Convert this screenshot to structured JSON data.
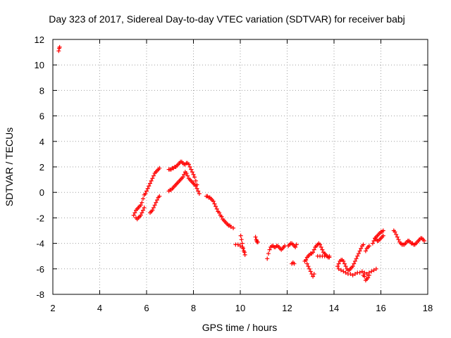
{
  "chart_data": {
    "type": "scatter",
    "title": "Day 323 of 2017, Sidereal Day-to-day VTEC variation (SDTVAR) for receiver babj",
    "xlabel": "GPS time / hours",
    "ylabel": "SDTVAR / TECUs",
    "xlim": [
      2,
      18
    ],
    "ylim": [
      -8,
      12
    ],
    "grid": true,
    "marker": "+",
    "color": "#ff0000",
    "xticks": [
      2,
      4,
      6,
      8,
      10,
      12,
      14,
      16,
      18
    ],
    "yticks": [
      -8,
      -6,
      -4,
      -2,
      0,
      2,
      4,
      6,
      8,
      10,
      12
    ],
    "xtick_labels": [
      "2",
      "4",
      "6",
      "8",
      "10",
      "12",
      "14",
      "16",
      "18"
    ],
    "ytick_labels": [
      "-8",
      "-6",
      "-4",
      "-2",
      "0",
      "2",
      "4",
      "6",
      "8",
      "10",
      "12"
    ],
    "series": [
      {
        "name": "SDTVAR",
        "x": [
          2.25,
          2.27,
          2.29,
          5.45,
          5.5,
          5.55,
          5.6,
          5.65,
          5.7,
          5.75,
          5.8,
          5.85,
          5.9,
          5.95,
          6.0,
          6.05,
          6.1,
          6.15,
          6.2,
          6.25,
          6.3,
          6.35,
          6.4,
          6.45,
          6.5,
          6.55,
          5.55,
          5.6,
          5.65,
          5.7,
          5.75,
          5.8,
          5.85,
          5.9,
          6.15,
          6.2,
          6.25,
          6.3,
          6.35,
          6.4,
          6.45,
          6.5,
          6.55,
          6.95,
          7.0,
          7.05,
          7.1,
          7.15,
          7.2,
          7.25,
          7.3,
          7.35,
          7.4,
          7.45,
          7.5,
          7.55,
          7.6,
          7.65,
          7.7,
          7.75,
          7.8,
          7.85,
          7.9,
          7.95,
          8.0,
          8.05,
          8.1,
          8.15,
          6.95,
          7.0,
          7.05,
          7.1,
          7.15,
          7.2,
          7.25,
          7.3,
          7.35,
          7.4,
          7.45,
          7.5,
          7.55,
          7.6,
          7.65,
          7.7,
          7.75,
          7.8,
          7.85,
          7.9,
          7.95,
          8.0,
          8.05,
          8.1,
          8.15,
          8.2,
          8.25,
          8.55,
          8.6,
          8.65,
          8.7,
          8.75,
          8.8,
          8.85,
          8.9,
          8.95,
          9.0,
          9.05,
          9.1,
          9.15,
          9.2,
          9.25,
          9.3,
          9.35,
          9.4,
          9.45,
          9.5,
          9.55,
          9.6,
          9.7,
          9.8,
          9.9,
          10.0,
          10.02,
          10.05,
          10.08,
          10.1,
          10.12,
          10.15,
          10.18,
          10.2,
          10.65,
          10.68,
          10.7,
          10.72,
          10.75,
          11.15,
          11.2,
          11.25,
          11.3,
          11.35,
          11.4,
          11.45,
          11.5,
          11.55,
          11.6,
          11.65,
          11.7,
          11.75,
          11.8,
          11.85,
          11.9,
          12.05,
          12.1,
          12.15,
          12.2,
          12.25,
          12.3,
          12.35,
          12.4,
          12.2,
          12.25,
          12.3,
          12.75,
          12.8,
          12.85,
          12.9,
          12.95,
          13.0,
          13.05,
          13.1,
          13.15,
          13.2,
          13.25,
          13.3,
          13.35,
          13.4,
          13.45,
          13.5,
          13.55,
          13.6,
          13.65,
          13.7,
          13.75,
          13.8,
          12.8,
          12.85,
          12.9,
          12.95,
          13.0,
          13.05,
          13.1,
          13.15,
          13.3,
          13.4,
          13.5,
          13.6,
          13.7,
          13.8,
          14.15,
          14.2,
          14.25,
          14.3,
          14.35,
          14.4,
          14.45,
          14.5,
          14.55,
          14.6,
          14.65,
          14.7,
          14.75,
          14.8,
          14.85,
          14.9,
          14.95,
          15.0,
          15.05,
          15.1,
          15.15,
          15.2,
          15.25,
          14.2,
          14.3,
          14.4,
          14.5,
          14.6,
          14.7,
          14.8,
          14.9,
          15.0,
          15.1,
          15.2,
          15.3,
          15.4,
          15.5,
          15.6,
          15.7,
          15.8,
          15.25,
          15.3,
          15.35,
          15.4,
          15.45,
          15.5,
          15.35,
          15.4,
          15.45,
          15.5,
          15.65,
          15.7,
          15.75,
          15.8,
          15.85,
          15.9,
          15.95,
          16.0,
          16.05,
          16.1,
          15.75,
          15.8,
          15.85,
          15.9,
          15.95,
          16.0,
          16.05,
          16.1,
          16.55,
          16.6,
          16.65,
          16.7,
          16.75,
          16.8,
          16.85,
          16.9,
          16.95,
          17.0,
          17.05,
          17.1,
          17.15,
          17.2,
          17.25,
          17.3,
          17.35,
          17.4,
          17.45,
          17.5,
          17.55,
          17.6,
          17.65,
          17.7,
          17.75,
          17.8,
          17.85
        ],
        "y": [
          11.1,
          11.3,
          11.4,
          -1.8,
          -1.6,
          -1.4,
          -1.3,
          -1.2,
          -1.1,
          -1.0,
          -0.8,
          -0.5,
          -0.2,
          -0.1,
          0.1,
          0.3,
          0.5,
          0.7,
          0.9,
          1.1,
          1.3,
          1.5,
          1.6,
          1.7,
          1.8,
          1.9,
          -2.0,
          -2.1,
          -2.0,
          -1.9,
          -1.8,
          -1.6,
          -1.4,
          -1.2,
          -1.6,
          -1.5,
          -1.4,
          -1.2,
          -1.0,
          -0.8,
          -0.6,
          -0.4,
          -0.3,
          1.8,
          1.8,
          1.8,
          1.9,
          1.9,
          2.0,
          2.0,
          2.1,
          2.2,
          2.3,
          2.4,
          2.4,
          2.3,
          2.2,
          2.2,
          2.3,
          2.3,
          2.2,
          2.0,
          1.8,
          1.6,
          1.4,
          1.2,
          0.9,
          0.6,
          0.1,
          0.2,
          0.2,
          0.3,
          0.4,
          0.5,
          0.6,
          0.7,
          0.8,
          0.9,
          1.0,
          1.1,
          1.2,
          1.4,
          1.6,
          1.5,
          1.3,
          1.1,
          1.0,
          0.9,
          0.8,
          0.7,
          0.6,
          0.5,
          0.3,
          0.1,
          -0.1,
          -0.3,
          -0.3,
          -0.4,
          -0.4,
          -0.5,
          -0.6,
          -0.7,
          -0.9,
          -1.1,
          -1.3,
          -1.5,
          -1.6,
          -1.8,
          -1.9,
          -2.1,
          -2.2,
          -2.3,
          -2.4,
          -2.5,
          -2.6,
          -2.6,
          -2.7,
          -2.8,
          -4.1,
          -4.1,
          -4.2,
          -3.4,
          -3.7,
          -4.0,
          -4.3,
          -4.4,
          -4.6,
          -4.7,
          -4.9,
          -3.5,
          -3.7,
          -3.8,
          -3.9,
          -3.9,
          -5.2,
          -4.8,
          -4.5,
          -4.3,
          -4.2,
          -4.2,
          -4.3,
          -4.3,
          -4.2,
          -4.2,
          -4.3,
          -4.4,
          -4.5,
          -4.4,
          -4.3,
          -4.2,
          -4.2,
          -4.1,
          -4.0,
          -4.0,
          -4.1,
          -4.2,
          -4.3,
          -4.1,
          -5.6,
          -5.5,
          -5.6,
          -5.4,
          -5.3,
          -5.1,
          -5.0,
          -4.9,
          -4.8,
          -4.8,
          -4.7,
          -4.5,
          -4.3,
          -4.2,
          -4.1,
          -4.0,
          -4.1,
          -4.3,
          -4.5,
          -4.7,
          -4.8,
          -4.9,
          -5.0,
          -5.1,
          -5.1,
          -5.3,
          -5.6,
          -5.8,
          -6.0,
          -6.2,
          -6.4,
          -6.6,
          -6.4,
          -5.0,
          -5.0,
          -5.0,
          -5.0,
          -5.0,
          -5.0,
          -5.8,
          -5.6,
          -5.4,
          -5.3,
          -5.3,
          -5.4,
          -5.6,
          -5.8,
          -6.0,
          -6.1,
          -6.1,
          -6.0,
          -5.9,
          -5.8,
          -5.6,
          -5.4,
          -5.2,
          -5.0,
          -4.8,
          -4.6,
          -4.4,
          -4.2,
          -4.1,
          -6.0,
          -6.1,
          -6.2,
          -6.3,
          -6.4,
          -6.4,
          -6.5,
          -6.4,
          -6.3,
          -6.3,
          -6.2,
          -6.3,
          -6.4,
          -6.3,
          -6.2,
          -6.1,
          -6.0,
          -6.5,
          -6.6,
          -6.9,
          -6.8,
          -6.7,
          -6.5,
          -4.6,
          -4.4,
          -4.3,
          -4.2,
          -4.0,
          -3.8,
          -3.6,
          -3.5,
          -3.4,
          -3.3,
          -3.2,
          -3.1,
          -3.1,
          -3.0,
          -3.6,
          -3.7,
          -3.8,
          -3.8,
          -3.7,
          -3.6,
          -3.5,
          -3.4,
          -3.0,
          -3.1,
          -3.3,
          -3.5,
          -3.7,
          -3.9,
          -4.0,
          -4.1,
          -4.1,
          -4.1,
          -4.0,
          -3.9,
          -3.8,
          -3.8,
          -3.9,
          -4.0,
          -4.0,
          -4.1,
          -4.1,
          -4.0,
          -3.9,
          -3.8,
          -3.7,
          -3.6,
          -3.6,
          -3.7,
          -3.8
        ]
      }
    ]
  }
}
